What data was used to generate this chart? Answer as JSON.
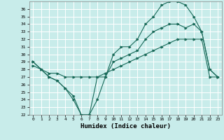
{
  "title": "",
  "xlabel": "Humidex (Indice chaleur)",
  "ylabel": "",
  "background_color": "#c8ecea",
  "grid_color": "#ffffff",
  "line_color": "#1a6b5a",
  "xlim": [
    -0.5,
    23.5
  ],
  "ylim": [
    22,
    37
  ],
  "xticks": [
    0,
    1,
    2,
    3,
    4,
    5,
    6,
    7,
    8,
    9,
    10,
    11,
    12,
    13,
    14,
    15,
    16,
    17,
    18,
    19,
    20,
    21,
    22,
    23
  ],
  "yticks": [
    22,
    23,
    24,
    25,
    26,
    27,
    28,
    29,
    30,
    31,
    32,
    33,
    34,
    35,
    36
  ],
  "series1_x": [
    0,
    1,
    2,
    3,
    4,
    5,
    6,
    7,
    8,
    9,
    10,
    11,
    12,
    13,
    14,
    15,
    16,
    17,
    18,
    19,
    20,
    21,
    22,
    23
  ],
  "series1_y": [
    29,
    28,
    27,
    26.5,
    25.5,
    24.5,
    22,
    22,
    27,
    27,
    29,
    29.5,
    30,
    30.5,
    32,
    33,
    33.5,
    34,
    34,
    33.5,
    34,
    33,
    28,
    27
  ],
  "series2_x": [
    0,
    1,
    2,
    3,
    4,
    5,
    6,
    7,
    8,
    9,
    10,
    11,
    12,
    13,
    14,
    15,
    16,
    17,
    18,
    19,
    20,
    21,
    22,
    23
  ],
  "series2_y": [
    29,
    28,
    27,
    26.5,
    25.5,
    24,
    22,
    22,
    24,
    27,
    30,
    31,
    31,
    32,
    34,
    35,
    36.5,
    37,
    37,
    36.5,
    35,
    33,
    28,
    27
  ],
  "series3_x": [
    0,
    1,
    2,
    3,
    4,
    5,
    6,
    7,
    8,
    9,
    10,
    11,
    12,
    13,
    14,
    15,
    16,
    17,
    18,
    19,
    20,
    21,
    22,
    23
  ],
  "series3_y": [
    28.5,
    28,
    27.5,
    27.5,
    27,
    27,
    27,
    27,
    27,
    27.5,
    28,
    28.5,
    29,
    29.5,
    30,
    30.5,
    31,
    31.5,
    32,
    32,
    32,
    32,
    27,
    27
  ]
}
